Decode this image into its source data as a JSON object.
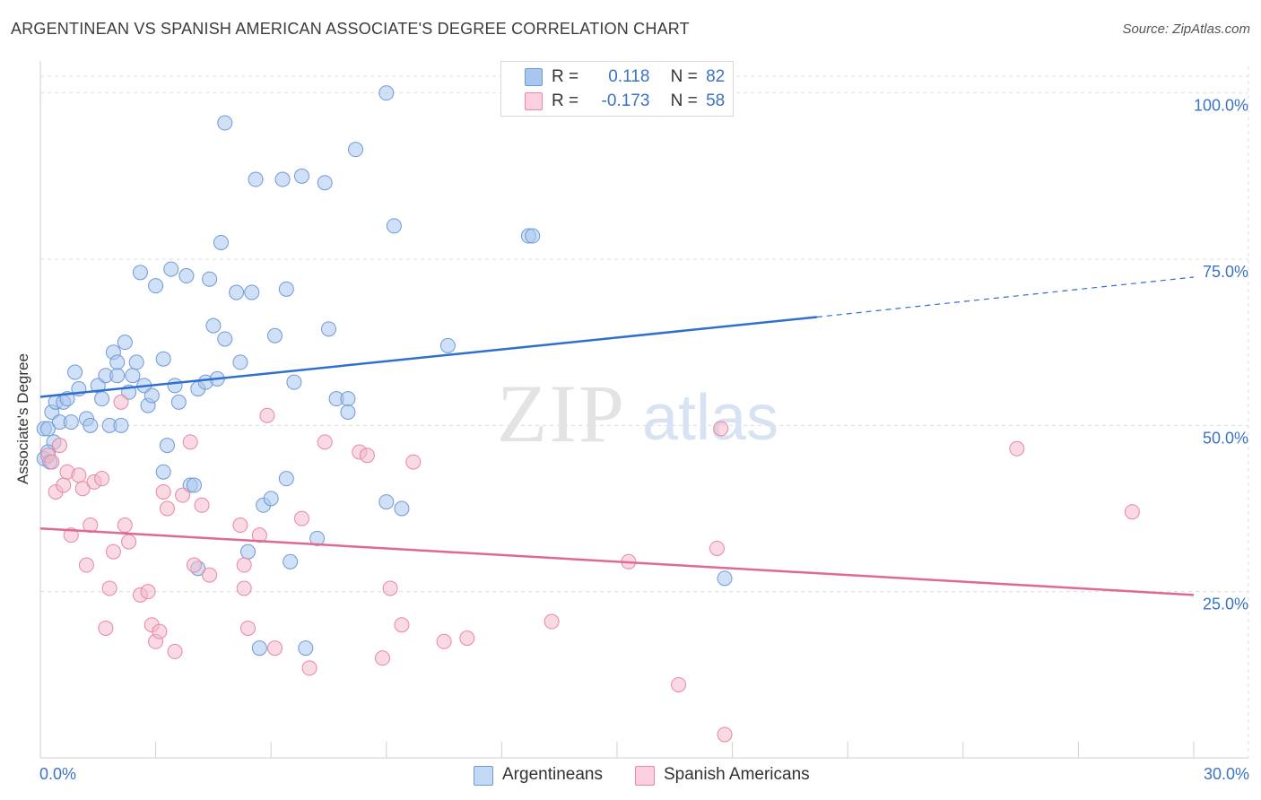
{
  "title": "ARGENTINEAN VS SPANISH AMERICAN ASSOCIATE'S DEGREE CORRELATION CHART",
  "source": "Source: ZipAtlas.com",
  "colors": {
    "blue": "#a9c6ee",
    "blue_stroke": "#6f9ad6",
    "blue_line": "#2e6fcf",
    "pink": "#f4b9cb",
    "pink_stroke": "#e887a6",
    "pink_line": "#e06994",
    "tick_text": "#3a73c6",
    "grid": "#dedede"
  },
  "legend": {
    "r_label": "R =",
    "n_label": "N =",
    "series": [
      {
        "r": "0.118",
        "n": "82"
      },
      {
        "r": "-0.173",
        "n": "58"
      }
    ]
  },
  "watermark": {
    "zip": "ZIP",
    "atlas": "atlas"
  },
  "chart_data": {
    "type": "scatter",
    "xlabel": "",
    "ylabel": "Associate's Degree",
    "xlim": [
      0,
      30
    ],
    "ylim": [
      0,
      104
    ],
    "x_tick_labels": [
      "0.0%",
      "30.0%"
    ],
    "y_ticks": [
      {
        "value": 25,
        "label": "25.0%"
      },
      {
        "value": 50,
        "label": "50.0%"
      },
      {
        "value": 75,
        "label": "75.0%"
      },
      {
        "value": 100,
        "label": "100.0%"
      }
    ],
    "series": [
      {
        "name": "Argentineans",
        "trend": {
          "x0": 0,
          "y0": 54.3,
          "x1": 20.2,
          "y1": 66.3,
          "x_dash_end": 30,
          "y_dash_end": 72.3
        },
        "points": [
          [
            0.1,
            49.5
          ],
          [
            0.1,
            45.0
          ],
          [
            0.2,
            49.5
          ],
          [
            0.3,
            52.0
          ],
          [
            0.35,
            47.5
          ],
          [
            0.4,
            53.5
          ],
          [
            0.5,
            50.5
          ],
          [
            0.6,
            53.5
          ],
          [
            0.7,
            54.0
          ],
          [
            0.8,
            50.5
          ],
          [
            0.9,
            58.0
          ],
          [
            1.0,
            55.5
          ],
          [
            1.2,
            51.0
          ],
          [
            1.3,
            50.0
          ],
          [
            1.5,
            56.0
          ],
          [
            1.6,
            54.0
          ],
          [
            1.7,
            57.5
          ],
          [
            1.8,
            50.0
          ],
          [
            1.9,
            61.0
          ],
          [
            2.0,
            57.5
          ],
          [
            2.0,
            59.5
          ],
          [
            2.1,
            50.0
          ],
          [
            2.2,
            62.5
          ],
          [
            2.3,
            55.0
          ],
          [
            2.4,
            57.5
          ],
          [
            2.5,
            59.5
          ],
          [
            2.6,
            73.0
          ],
          [
            2.7,
            56.0
          ],
          [
            2.8,
            53.0
          ],
          [
            2.9,
            54.5
          ],
          [
            3.0,
            71.0
          ],
          [
            3.2,
            60.0
          ],
          [
            3.2,
            43.0
          ],
          [
            3.3,
            47.0
          ],
          [
            3.4,
            73.5
          ],
          [
            3.5,
            56.0
          ],
          [
            3.6,
            53.5
          ],
          [
            3.8,
            72.5
          ],
          [
            3.9,
            41.0
          ],
          [
            4.0,
            41.0
          ],
          [
            4.1,
            55.5
          ],
          [
            4.1,
            28.5
          ],
          [
            4.3,
            56.5
          ],
          [
            4.4,
            72.0
          ],
          [
            4.5,
            65.0
          ],
          [
            4.6,
            57.0
          ],
          [
            4.7,
            77.5
          ],
          [
            4.8,
            63.0
          ],
          [
            4.8,
            95.5
          ],
          [
            5.1,
            70.0
          ],
          [
            5.2,
            59.5
          ],
          [
            5.4,
            31.0
          ],
          [
            5.5,
            70.0
          ],
          [
            5.6,
            87.0
          ],
          [
            5.7,
            16.5
          ],
          [
            5.8,
            38.0
          ],
          [
            6.0,
            39.0
          ],
          [
            6.1,
            63.5
          ],
          [
            6.3,
            87.0
          ],
          [
            6.4,
            42.0
          ],
          [
            6.4,
            70.5
          ],
          [
            6.5,
            29.5
          ],
          [
            6.6,
            56.5
          ],
          [
            6.8,
            87.5
          ],
          [
            6.9,
            16.5
          ],
          [
            7.2,
            33.0
          ],
          [
            7.4,
            86.5
          ],
          [
            7.5,
            64.5
          ],
          [
            7.7,
            54.0
          ],
          [
            8.0,
            54.0
          ],
          [
            8.0,
            52.0
          ],
          [
            8.2,
            91.5
          ],
          [
            9.0,
            38.5
          ],
          [
            9.2,
            80.0
          ],
          [
            9.4,
            37.5
          ],
          [
            9.0,
            100.0
          ],
          [
            10.6,
            62.0
          ],
          [
            12.7,
            78.5
          ],
          [
            12.8,
            78.5
          ],
          [
            17.8,
            27.0
          ],
          [
            0.2,
            46.0
          ],
          [
            0.25,
            44.5
          ]
        ]
      },
      {
        "name": "Spanish Americans",
        "trend": {
          "x0": 0,
          "y0": 34.5,
          "x1": 30,
          "y1": 24.5
        },
        "points": [
          [
            0.2,
            45.5
          ],
          [
            0.3,
            44.5
          ],
          [
            0.4,
            40.0
          ],
          [
            0.5,
            47.0
          ],
          [
            0.6,
            41.0
          ],
          [
            0.7,
            43.0
          ],
          [
            0.8,
            33.5
          ],
          [
            1.0,
            42.5
          ],
          [
            1.1,
            40.5
          ],
          [
            1.2,
            29.0
          ],
          [
            1.3,
            35.0
          ],
          [
            1.4,
            41.5
          ],
          [
            1.6,
            42.0
          ],
          [
            1.7,
            19.5
          ],
          [
            1.8,
            25.5
          ],
          [
            1.9,
            31.0
          ],
          [
            2.1,
            53.5
          ],
          [
            2.2,
            35.0
          ],
          [
            2.3,
            32.5
          ],
          [
            2.6,
            24.5
          ],
          [
            2.8,
            25.0
          ],
          [
            2.9,
            20.0
          ],
          [
            3.0,
            17.5
          ],
          [
            3.1,
            19.0
          ],
          [
            3.2,
            40.0
          ],
          [
            3.3,
            37.5
          ],
          [
            3.5,
            16.0
          ],
          [
            3.7,
            39.5
          ],
          [
            3.9,
            47.5
          ],
          [
            4.0,
            29.0
          ],
          [
            4.2,
            38.0
          ],
          [
            4.4,
            27.5
          ],
          [
            5.2,
            35.0
          ],
          [
            5.3,
            29.0
          ],
          [
            5.3,
            25.5
          ],
          [
            5.4,
            19.5
          ],
          [
            5.7,
            33.5
          ],
          [
            5.9,
            51.5
          ],
          [
            6.1,
            16.5
          ],
          [
            6.8,
            36.0
          ],
          [
            7.0,
            13.5
          ],
          [
            7.4,
            47.5
          ],
          [
            8.3,
            46.0
          ],
          [
            8.5,
            45.5
          ],
          [
            8.9,
            15.0
          ],
          [
            9.1,
            25.5
          ],
          [
            9.4,
            20.0
          ],
          [
            9.7,
            44.5
          ],
          [
            10.5,
            17.5
          ],
          [
            11.1,
            18.0
          ],
          [
            13.3,
            20.5
          ],
          [
            15.3,
            29.5
          ],
          [
            16.6,
            11.0
          ],
          [
            17.6,
            31.5
          ],
          [
            17.8,
            3.5
          ],
          [
            17.7,
            49.5
          ],
          [
            25.4,
            46.5
          ],
          [
            28.4,
            37.0
          ]
        ]
      }
    ]
  }
}
